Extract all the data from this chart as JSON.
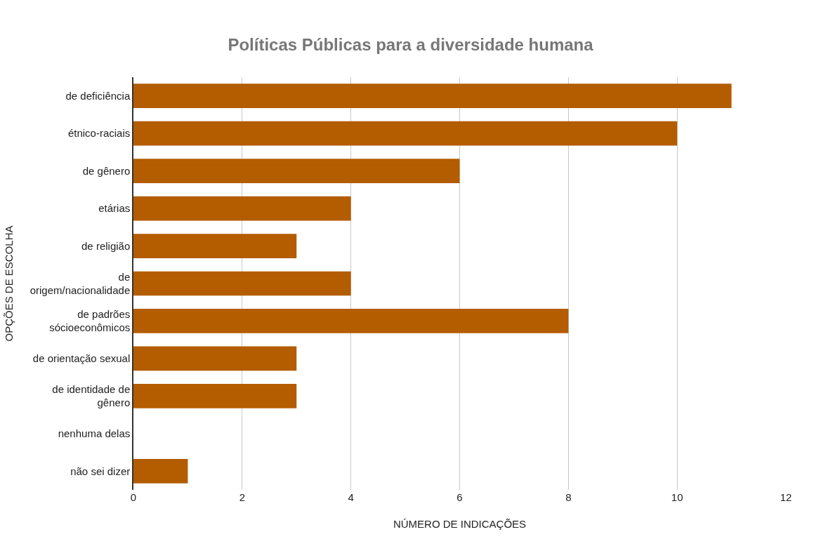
{
  "chart_data": {
    "type": "bar",
    "orientation": "horizontal",
    "title": "Políticas Públicas para a diversidade humana",
    "xlabel": "NÚMERO DE INDICAÇÕES",
    "ylabel": "OPÇÕES DE ESCOLHA",
    "categories": [
      "de deficiência",
      "étnico-raciais",
      "de gênero",
      "etárias",
      "de religião",
      "de\norigem/nacionalidade",
      "de padrões\nsócioeconômicos",
      "de orientação sexual",
      "de identidade de\ngênero",
      "nenhuma delas",
      "não sei dizer"
    ],
    "values": [
      11,
      10,
      6,
      4,
      3,
      4,
      8,
      3,
      3,
      0,
      1
    ],
    "color": "#b35c00",
    "xlim": [
      0,
      12
    ],
    "xticks": [
      0,
      2,
      4,
      6,
      8,
      10,
      12
    ],
    "grid": "x"
  }
}
